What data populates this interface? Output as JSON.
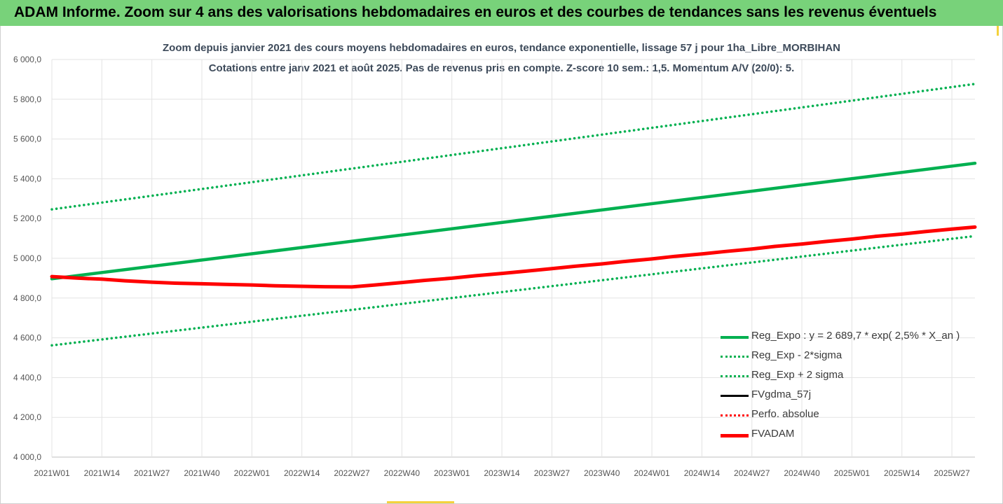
{
  "header": {
    "banner_title": "ADAM Informe. Zoom sur 4 ans des valorisations hebdomadaires en euros et des courbes de tendances sans les revenus éventuels",
    "banner_color": "#78d27a"
  },
  "chart_data": {
    "type": "line",
    "title": "Zoom depuis janvier 2021 des cours moyens hebdomadaires en euros, tendance exponentielle, lissage 57 j pour 1ha_Libre_MORBIHAN",
    "subtitle": "Cotations entre janv 2021 et août 2025.  Pas de revenus pris en compte. Z-score 10 sem.: 1,5. Momentum A/V (20/0): 5.",
    "xlabel": "",
    "ylabel": "",
    "ylim": [
      4000,
      6000
    ],
    "y_ticks": [
      "4 000,0",
      "4 200,0",
      "4 400,0",
      "4 600,0",
      "4 800,0",
      "5 000,0",
      "5 200,0",
      "5 400,0",
      "5 600,0",
      "5 800,0",
      "6 000,0"
    ],
    "x_ticks": [
      "2021W01",
      "2021W14",
      "2021W27",
      "2021W40",
      "2022W01",
      "2022W14",
      "2022W27",
      "2022W40",
      "2023W01",
      "2023W14",
      "2023W27",
      "2023W40",
      "2024W01",
      "2024W14",
      "2024W27",
      "2024W40",
      "2025W01",
      "2025W14",
      "2025W27"
    ],
    "x_last": "2025W33",
    "grid": true,
    "legend_position": "bottom-right",
    "series": [
      {
        "name": "Reg_Expo : y = 2 689,7 * exp( 2,5% *  X_an )",
        "color": "#00b050",
        "style": "solid",
        "points": [
          [
            "2021W01",
            4897
          ],
          [
            "2025W33",
            5478
          ]
        ]
      },
      {
        "name": "Reg_Exp - 2*sigma",
        "color": "#00b050",
        "style": "dotted",
        "points": [
          [
            "2021W01",
            4562
          ],
          [
            "2025W33",
            5112
          ]
        ]
      },
      {
        "name": "Reg_Exp + 2 sigma",
        "color": "#00b050",
        "style": "dotted",
        "points": [
          [
            "2021W01",
            5246
          ],
          [
            "2025W33",
            5877
          ]
        ]
      },
      {
        "name": "FVgdma_57j",
        "color": "#000000",
        "style": "solid",
        "points": [
          [
            "2022W22",
            4857
          ],
          [
            "2022W25",
            4856
          ],
          [
            "2022W28",
            4860
          ],
          [
            "2022W31",
            4866
          ]
        ]
      },
      {
        "name": "Perfo. absolue",
        "color": "#ff0000",
        "style": "dotted",
        "points": []
      },
      {
        "name": "FVADAM",
        "color": "#ff0000",
        "style": "solid",
        "points": [
          [
            "2021W01",
            4908
          ],
          [
            "2021W08",
            4900
          ],
          [
            "2021W14",
            4895
          ],
          [
            "2021W20",
            4887
          ],
          [
            "2021W27",
            4880
          ],
          [
            "2021W33",
            4875
          ],
          [
            "2021W40",
            4872
          ],
          [
            "2021W46",
            4869
          ],
          [
            "2022W01",
            4866
          ],
          [
            "2022W07",
            4862
          ],
          [
            "2022W14",
            4859
          ],
          [
            "2022W20",
            4857
          ],
          [
            "2022W27",
            4856
          ],
          [
            "2022W33",
            4866
          ],
          [
            "2022W40",
            4878
          ],
          [
            "2022W46",
            4889
          ],
          [
            "2023W01",
            4900
          ],
          [
            "2023W07",
            4912
          ],
          [
            "2023W14",
            4924
          ],
          [
            "2023W20",
            4935
          ],
          [
            "2023W27",
            4948
          ],
          [
            "2023W33",
            4960
          ],
          [
            "2023W40",
            4972
          ],
          [
            "2023W46",
            4984
          ],
          [
            "2024W01",
            4997
          ],
          [
            "2024W07",
            5010
          ],
          [
            "2024W14",
            5022
          ],
          [
            "2024W20",
            5034
          ],
          [
            "2024W27",
            5047
          ],
          [
            "2024W33",
            5060
          ],
          [
            "2024W40",
            5072
          ],
          [
            "2024W46",
            5084
          ],
          [
            "2025W01",
            5097
          ],
          [
            "2025W07",
            5110
          ],
          [
            "2025W14",
            5122
          ],
          [
            "2025W20",
            5134
          ],
          [
            "2025W27",
            5147
          ],
          [
            "2025W33",
            5157
          ]
        ]
      }
    ]
  }
}
